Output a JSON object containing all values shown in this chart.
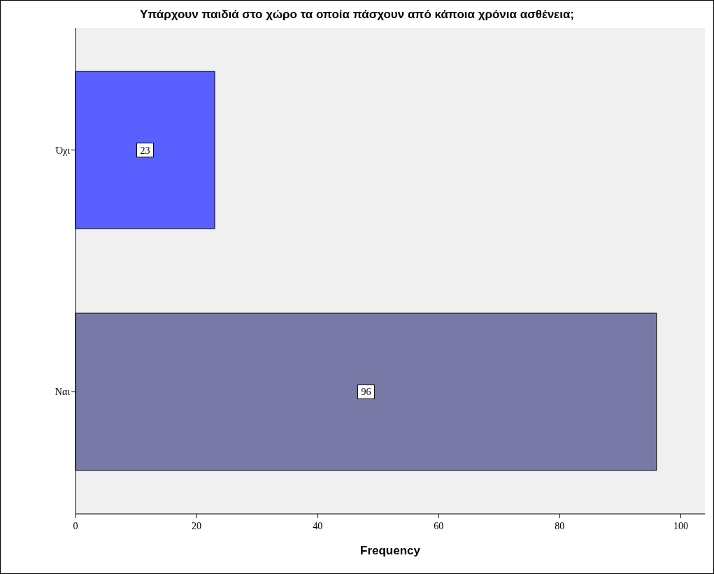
{
  "chart_data": {
    "type": "bar",
    "orientation": "horizontal",
    "title": "Υπάρχουν παιδιά στο χώρο τα οποία πάσχουν από κάποια χρόνια ασθένεια;",
    "xlabel": "Frequency",
    "categories": [
      "Όχι",
      "Ναι"
    ],
    "values": [
      23,
      96
    ],
    "colors": [
      "#5a5fff",
      "#7879a7"
    ],
    "xlim": [
      0,
      104
    ],
    "xticks": [
      0,
      20,
      40,
      60,
      80,
      100
    ],
    "data_labels": true,
    "grid": false
  }
}
